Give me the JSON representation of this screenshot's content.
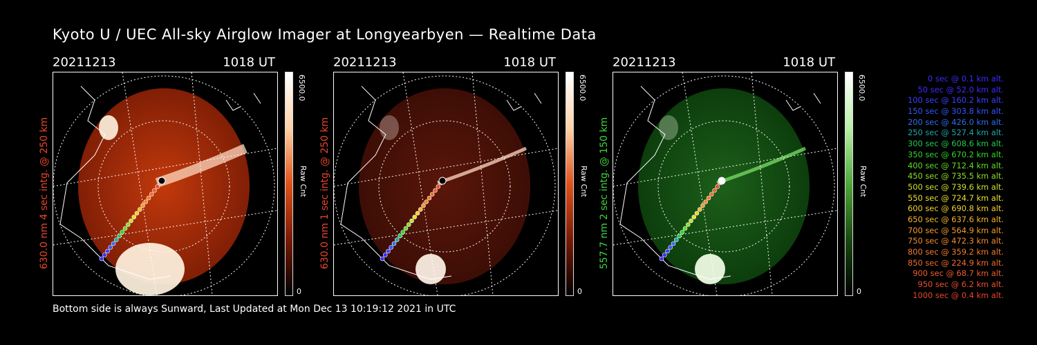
{
  "title": "Kyoto U / UEC All-sky Airglow Imager at Longyearbyen — Realtime Data",
  "footer": "Bottom side is always Sunward, Last Updated at Mon Dec 13 10:19:12 2021 in UTC",
  "panels": [
    {
      "date": "20211213",
      "time": "1018 UT",
      "side_label": "630.0 nm 4 sec intg. @ 250 km",
      "side_color": "#e8452a",
      "cbar_max": "6500.0",
      "cbar_unit": "Raw Cnt",
      "cbar_min": "0",
      "scheme": "red",
      "intensity": "bright"
    },
    {
      "date": "20211213",
      "time": "1018 UT",
      "side_label": "630.0 nm 1 sec intg. @ 250 km",
      "side_color": "#e8452a",
      "cbar_max": "6500.0",
      "cbar_unit": "Raw Cnt",
      "cbar_min": "0",
      "scheme": "red",
      "intensity": "dim"
    },
    {
      "date": "20211213",
      "time": "1018 UT",
      "side_label": "557.7 nm 2 sec intg. @ 150 km",
      "side_color": "#3fd33f",
      "cbar_max": "6500.0",
      "cbar_unit": "Raw Cnt",
      "cbar_min": "0",
      "scheme": "green",
      "intensity": "dim"
    }
  ],
  "legend": [
    {
      "text": "0 sec @    0.1 km alt.",
      "color": "#3b2bff"
    },
    {
      "text": "50 sec @   52.0 km alt.",
      "color": "#3b2bff"
    },
    {
      "text": "100 sec @  160.2 km alt.",
      "color": "#3b40ff"
    },
    {
      "text": "150 sec @  303.8 km alt.",
      "color": "#3555ff"
    },
    {
      "text": "200 sec @  426.0 km alt.",
      "color": "#2f6cf0"
    },
    {
      "text": "250 sec @  527.4 km alt.",
      "color": "#1fa6a8"
    },
    {
      "text": "300 sec @  608.6 km alt.",
      "color": "#20c850"
    },
    {
      "text": "350 sec @  670.2 km alt.",
      "color": "#33d42a"
    },
    {
      "text": "400 sec @  712.4 km alt.",
      "color": "#5fda26"
    },
    {
      "text": "450 sec @  735.5 km alt.",
      "color": "#8edd28"
    },
    {
      "text": "500 sec @  739.6 km alt.",
      "color": "#c9e02a"
    },
    {
      "text": "550 sec @  724.7 km alt.",
      "color": "#e8e02c"
    },
    {
      "text": "600 sec @  690.8 km alt.",
      "color": "#f0d12d"
    },
    {
      "text": "650 sec @  637.6 km alt.",
      "color": "#f4b52d"
    },
    {
      "text": "700 sec @  564.9 km alt.",
      "color": "#f59a2d"
    },
    {
      "text": "750 sec @  472.3 km alt.",
      "color": "#f5892d"
    },
    {
      "text": "800 sec @  359.2 km alt.",
      "color": "#f27b2d"
    },
    {
      "text": "850 sec @  224.9 km alt.",
      "color": "#ef6c2c"
    },
    {
      "text": "900 sec @   68.7 km alt.",
      "color": "#eb5d2b"
    },
    {
      "text": "950 sec @    6.2 km alt.",
      "color": "#e84f2a"
    },
    {
      "text": "1000 sec @    0.4 km alt.",
      "color": "#e5442a"
    }
  ]
}
